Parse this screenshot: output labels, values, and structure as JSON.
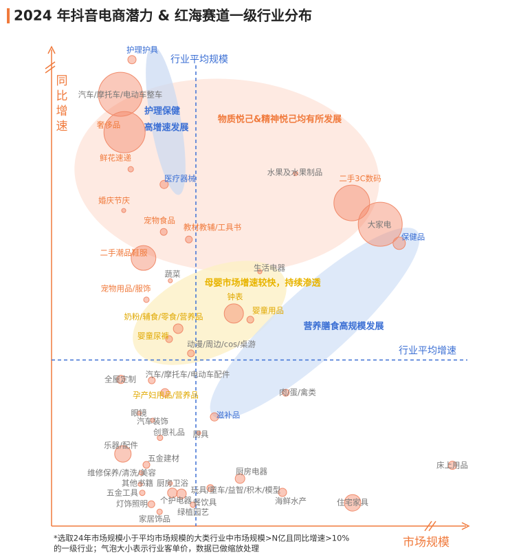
{
  "chart_data": {
    "type": "bubble",
    "title": "2024 年抖音电商潜力 & 红海赛道一级行业分布",
    "x_label": "市场规模",
    "y_label": "同比增速",
    "xlim": [
      0,
      100
    ],
    "ylim": [
      0,
      100
    ],
    "reference_lines": [
      {
        "axis": "x",
        "value": 35,
        "label": "行业平均规模"
      },
      {
        "axis": "y",
        "value": 35,
        "label": "行业平均增速"
      }
    ],
    "annotations": [
      "护理保健",
      "高增速发展",
      "物质悦己&精神悦己均有所发展",
      "母婴市场增速较快，持续渗透",
      "营养膳食高规模发展"
    ],
    "points": [
      {
        "label": "护理护具",
        "x": 19.5,
        "y": 98.3,
        "size": 6
      },
      {
        "label": "汽车/摩托车/电动车整车",
        "x": 16.7,
        "y": 91.0,
        "size": 32
      },
      {
        "label": "奢侈品",
        "x": 17.7,
        "y": 83.0,
        "size": 30
      },
      {
        "label": "鲜花速递",
        "x": 19.2,
        "y": 75.2,
        "size": 4
      },
      {
        "label": "医疗器械",
        "x": 27.3,
        "y": 72.0,
        "size": 6
      },
      {
        "label": "婚庆节庆",
        "x": 17.5,
        "y": 66.5,
        "size": 3
      },
      {
        "label": "宠物食品",
        "x": 27.2,
        "y": 62.0,
        "size": 5
      },
      {
        "label": "教材教辅/工具书",
        "x": 33.3,
        "y": 60.4,
        "size": 5
      },
      {
        "label": "二手潮品鞋服",
        "x": 22.3,
        "y": 56.5,
        "size": 18
      },
      {
        "label": "蔬菜",
        "x": 28.8,
        "y": 51.7,
        "size": 3
      },
      {
        "label": "宠物用品/服饰",
        "x": 23.0,
        "y": 47.7,
        "size": 4
      },
      {
        "label": "生活电器",
        "x": 50.5,
        "y": 53.6,
        "size": 3
      },
      {
        "label": "钟表",
        "x": 44.2,
        "y": 44.8,
        "size": 14
      },
      {
        "label": "婴童用品",
        "x": 48.2,
        "y": 43.5,
        "size": 5
      },
      {
        "label": "奶粉/辅食/零食/营养品",
        "x": 30.7,
        "y": 41.6,
        "size": 7
      },
      {
        "label": "婴童尿裤",
        "x": 28.5,
        "y": 39.4,
        "size": 5
      },
      {
        "label": "动漫/周边/cos/桌游",
        "x": 33.8,
        "y": 36.4,
        "size": 5
      },
      {
        "label": "水果及水果制品",
        "x": 59.2,
        "y": 74.3,
        "size": 3
      },
      {
        "label": "二手3C数码",
        "x": 72.8,
        "y": 68.1,
        "size": 26
      },
      {
        "label": "大家电",
        "x": 79.7,
        "y": 63.6,
        "size": 32
      },
      {
        "label": "保健品",
        "x": 84.3,
        "y": 59.6,
        "size": 9
      },
      {
        "label": "全屋定制",
        "x": 16.8,
        "y": 30.9,
        "size": 6
      },
      {
        "label": "汽车/摩托车/电动车配件",
        "x": 24.3,
        "y": 30.7,
        "size": 5
      },
      {
        "label": "孕产妇用品/营养品",
        "x": 27.5,
        "y": 28.1,
        "size": 6
      },
      {
        "label": "肉/蛋/禽类",
        "x": 56.8,
        "y": 28.1,
        "size": 5
      },
      {
        "label": "眼镜",
        "x": 21.3,
        "y": 23.8,
        "size": 3
      },
      {
        "label": "汽车装饰",
        "x": 24.5,
        "y": 22.3,
        "size": 3
      },
      {
        "label": "滋补品",
        "x": 39.5,
        "y": 23.0,
        "size": 6
      },
      {
        "label": "创意礼品",
        "x": 26.3,
        "y": 18.6,
        "size": 4
      },
      {
        "label": "厨具",
        "x": 35.7,
        "y": 19.6,
        "size": 3
      },
      {
        "label": "乐器/配件",
        "x": 17.3,
        "y": 15.2,
        "size": 12
      },
      {
        "label": "五金建材",
        "x": 23.0,
        "y": 12.9,
        "size": 5
      },
      {
        "label": "维修保养/清洗/美容",
        "x": 21.7,
        "y": 11.2,
        "size": 3
      },
      {
        "label": "床上用品",
        "x": 97.2,
        "y": 12.8,
        "size": 6
      },
      {
        "label": "厨房电器",
        "x": 45.7,
        "y": 10.0,
        "size": 7
      },
      {
        "label": "其他书籍",
        "x": 21.5,
        "y": 8.8,
        "size": 3
      },
      {
        "label": "厨房卫浴",
        "x": 28.8,
        "y": 9.0,
        "size": 3
      },
      {
        "label": "五金工具",
        "x": 22.0,
        "y": 7.0,
        "size": 4
      },
      {
        "label": "玩具/童车/益智/积木/模型",
        "x": 38.5,
        "y": 8.0,
        "size": 5
      },
      {
        "label": "个护电器",
        "x": 29.3,
        "y": 7.0,
        "size": 7
      },
      {
        "label": "灯饰照明",
        "x": 24.2,
        "y": 4.6,
        "size": 5
      },
      {
        "label": "餐饮具",
        "x": 31.5,
        "y": 6.8,
        "size": 7
      },
      {
        "label": "海鲜水产",
        "x": 56.0,
        "y": 7.1,
        "size": 6
      },
      {
        "label": "住宅家具",
        "x": 73.0,
        "y": 4.9,
        "size": 12
      },
      {
        "label": "绿植园艺",
        "x": 34.3,
        "y": 4.5,
        "size": 4
      },
      {
        "label": "家居饰品",
        "x": 26.2,
        "y": 3.0,
        "size": 4
      }
    ],
    "footnote": [
      "*选取24年市场规模小于平均市场规模的大类行业中市场规模>N亿且同比增速>10%",
      "的一级行业；气泡大小表示行业客单价，数据已做缩放处理"
    ]
  }
}
